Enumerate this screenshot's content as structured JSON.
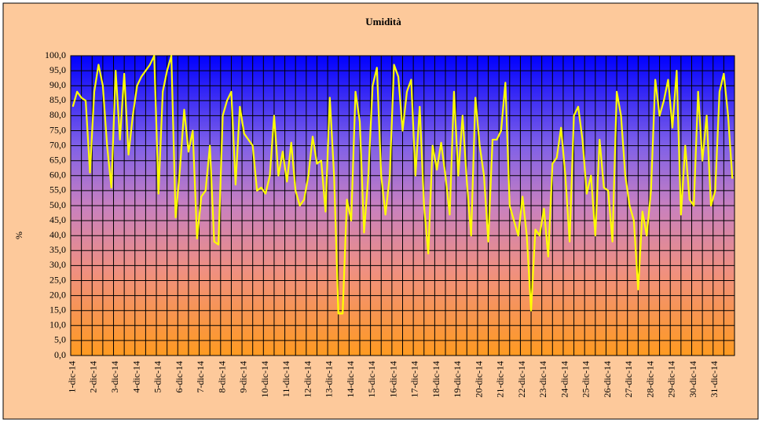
{
  "chart_data": {
    "type": "line",
    "title": "Umidità",
    "y_label": "%",
    "categories": [
      "1-dic-14",
      null,
      null,
      null,
      null,
      "2-dic-14",
      null,
      null,
      null,
      null,
      "3-dic-14",
      null,
      null,
      null,
      null,
      "4-dic-14",
      null,
      null,
      null,
      null,
      "5-dic-14",
      null,
      null,
      null,
      null,
      "6-dic-14",
      null,
      null,
      null,
      null,
      "7-dic-14",
      null,
      null,
      null,
      null,
      "8-dic-14",
      null,
      null,
      null,
      null,
      "9-dic-14",
      null,
      null,
      null,
      null,
      "10-dic-14",
      null,
      null,
      null,
      null,
      "11-dic-14",
      null,
      null,
      null,
      null,
      "12-dic-14",
      null,
      null,
      null,
      null,
      "13-dic-14",
      null,
      null,
      null,
      null,
      "14-dic-14",
      null,
      null,
      null,
      null,
      "15-dic-14",
      null,
      null,
      null,
      null,
      "16-dic-14",
      null,
      null,
      null,
      null,
      "17-dic-14",
      null,
      null,
      null,
      null,
      "18-dic-14",
      null,
      null,
      null,
      null,
      "19-dic-14",
      null,
      null,
      null,
      null,
      "20-dic-14",
      null,
      null,
      null,
      null,
      "21-dic-14",
      null,
      null,
      null,
      null,
      "22-dic-14",
      null,
      null,
      null,
      null,
      "23-dic-14",
      null,
      null,
      null,
      null,
      "24-dic-14",
      null,
      null,
      null,
      null,
      "25-dic-14",
      null,
      null,
      null,
      null,
      "26-dic-14",
      null,
      null,
      null,
      null,
      "27-dic-14",
      null,
      null,
      null,
      null,
      "28-dic-14",
      null,
      null,
      null,
      null,
      "29-dic-14",
      null,
      null,
      null,
      null,
      "30-dic-14",
      null,
      null,
      null,
      null,
      "31-dic-14",
      null,
      null,
      null,
      null
    ],
    "series": [
      {
        "name": "Umidità",
        "color": "#ffff00",
        "values": [
          83,
          88,
          86,
          85,
          61,
          88,
          97,
          90,
          70,
          56,
          95,
          72,
          94,
          67,
          80,
          90,
          93,
          95,
          97,
          100,
          54,
          88,
          95,
          100,
          46,
          62,
          82,
          68,
          75,
          39,
          53,
          55,
          70,
          38,
          37,
          80,
          85,
          88,
          57,
          83,
          74,
          72,
          70,
          55,
          56,
          54,
          60,
          80,
          60,
          68,
          58,
          71,
          55,
          50,
          52,
          60,
          73,
          64,
          65,
          48,
          86,
          60,
          14,
          14,
          52,
          45,
          88,
          78,
          41,
          60,
          90,
          96,
          60,
          47,
          60,
          97,
          93,
          75,
          88,
          92,
          60,
          83,
          50,
          34,
          70,
          62,
          71,
          60,
          47,
          88,
          60,
          80,
          58,
          40,
          86,
          70,
          60,
          38,
          72,
          72,
          75,
          91,
          50,
          45,
          40,
          53,
          40,
          15,
          42,
          40,
          49,
          33,
          64,
          66,
          76,
          60,
          38,
          80,
          83,
          72,
          54,
          60,
          40,
          72,
          56,
          55,
          38,
          88,
          80,
          60,
          50,
          45,
          22,
          48,
          40,
          55,
          92,
          80,
          85,
          92,
          76,
          95,
          47,
          70,
          52,
          50,
          88,
          65,
          80,
          50,
          55,
          88,
          94,
          80,
          59
        ]
      }
    ],
    "ylim": [
      0,
      100
    ],
    "yticks": [
      {
        "value": 0,
        "label": "0,0"
      },
      {
        "value": 5,
        "label": "5,0"
      },
      {
        "value": 10,
        "label": "10,0"
      },
      {
        "value": 15,
        "label": "15,0"
      },
      {
        "value": 20,
        "label": "20,0"
      },
      {
        "value": 25,
        "label": "25,0"
      },
      {
        "value": 30,
        "label": "30,0"
      },
      {
        "value": 35,
        "label": "35,0"
      },
      {
        "value": 40,
        "label": "40,0"
      },
      {
        "value": 45,
        "label": "45,0"
      },
      {
        "value": 50,
        "label": "50,0"
      },
      {
        "value": 55,
        "label": "55,0"
      },
      {
        "value": 60,
        "label": "60,0"
      },
      {
        "value": 65,
        "label": "65,0"
      },
      {
        "value": 70,
        "label": "70,0"
      },
      {
        "value": 75,
        "label": "75,0"
      },
      {
        "value": 80,
        "label": "80,0"
      },
      {
        "value": 85,
        "label": "85,0"
      },
      {
        "value": 90,
        "label": "90,0"
      },
      {
        "value": 95,
        "label": "95,0"
      },
      {
        "value": 100,
        "label": "100,0"
      }
    ],
    "grid": true
  }
}
